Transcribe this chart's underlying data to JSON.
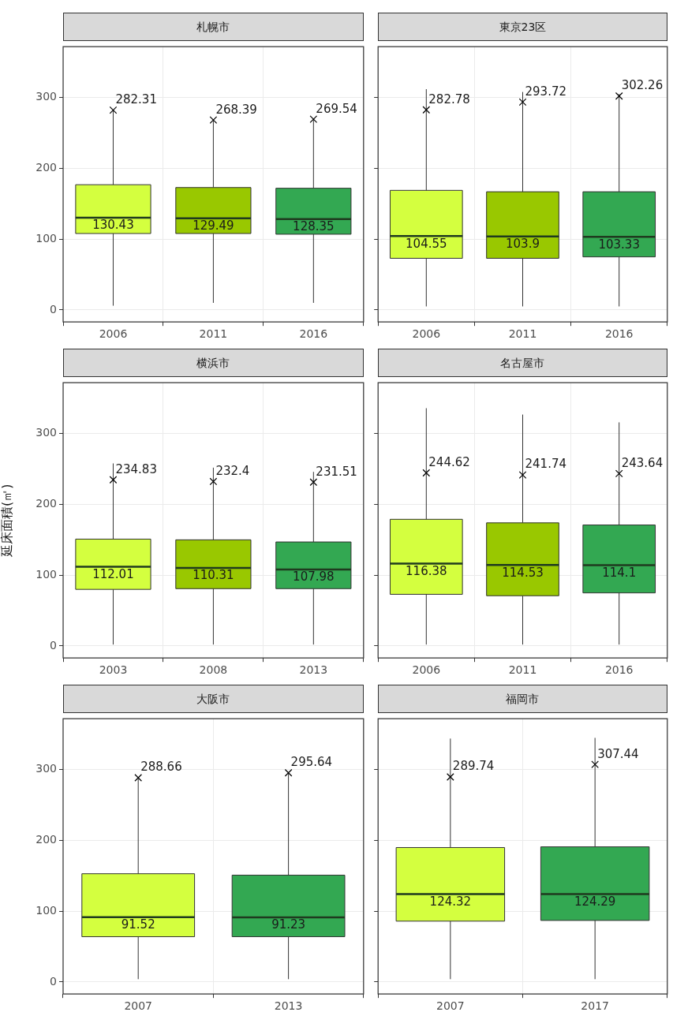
{
  "chart_data": [
    {
      "type": "box",
      "title": "札幌市",
      "categories": [
        "2006",
        "2011",
        "2016"
      ],
      "colors": [
        "#d4ff3f",
        "#99c800",
        "#33a852"
      ],
      "boxes": [
        {
          "low": 6,
          "q1": 108,
          "median": 130.43,
          "q3": 177,
          "high": 282
        },
        {
          "low": 10,
          "q1": 108,
          "median": 129.49,
          "q3": 173,
          "high": 268
        },
        {
          "low": 10,
          "q1": 107,
          "median": 128.35,
          "q3": 172,
          "high": 270
        }
      ],
      "series": [
        {
          "type": "scatter",
          "color": "#000000",
          "marker": "cross",
          "values": [
            282.31,
            268.39,
            269.54
          ]
        }
      ],
      "annotations": [
        {
          "text": "130.43",
          "x": "2006",
          "y": 130.43
        },
        {
          "text": "129.49",
          "x": "2011",
          "y": 129.49
        },
        {
          "text": "128.35",
          "x": "2016",
          "y": 128.35
        }
      ],
      "ylim": [
        -17,
        372
      ],
      "yticks": [
        0,
        100,
        200,
        300
      ],
      "grid": true,
      "data_labels": true
    },
    {
      "type": "box",
      "title": "東京23区",
      "categories": [
        "2006",
        "2011",
        "2016"
      ],
      "colors": [
        "#d4ff3f",
        "#99c800",
        "#33a852"
      ],
      "boxes": [
        {
          "low": 5,
          "q1": 73,
          "median": 104.55,
          "q3": 169,
          "high": 312
        },
        {
          "low": 5,
          "q1": 73,
          "median": 103.9,
          "q3": 167,
          "high": 308
        },
        {
          "low": 5,
          "q1": 75,
          "median": 103.33,
          "q3": 167,
          "high": 305
        }
      ],
      "series": [
        {
          "type": "scatter",
          "color": "#000000",
          "marker": "cross",
          "values": [
            282.78,
            293.72,
            302.26
          ]
        }
      ],
      "annotations": [
        {
          "text": "104.55",
          "x": "2006",
          "y": 104.55
        },
        {
          "text": "103.9",
          "x": "2011",
          "y": 103.9
        },
        {
          "text": "103.33",
          "x": "2016",
          "y": 103.33
        }
      ],
      "ylim": [
        -17,
        372
      ],
      "yticks": [
        0,
        100,
        200,
        300
      ],
      "grid": true,
      "data_labels": true,
      "tick_labels": "x"
    },
    {
      "type": "box",
      "title": "横浜市",
      "ylabel": "延床面積(㎡)",
      "categories": [
        "2003",
        "2008",
        "2013"
      ],
      "colors": [
        "#d4ff3f",
        "#99c800",
        "#33a852"
      ],
      "boxes": [
        {
          "low": 2,
          "q1": 80,
          "median": 112.01,
          "q3": 151,
          "high": 258
        },
        {
          "low": 2,
          "q1": 81,
          "median": 110.31,
          "q3": 150,
          "high": 252
        },
        {
          "low": 2,
          "q1": 81,
          "median": 107.98,
          "q3": 147,
          "high": 246
        }
      ],
      "series": [
        {
          "type": "scatter",
          "color": "#000000",
          "marker": "cross",
          "values": [
            234.83,
            232.4,
            231.51
          ]
        }
      ],
      "annotations": [
        {
          "text": "112.01",
          "x": "2003",
          "y": 112.01
        },
        {
          "text": "110.31",
          "x": "2008",
          "y": 110.31
        },
        {
          "text": "107.98",
          "x": "2013",
          "y": 107.98
        }
      ],
      "ylim": [
        -17,
        372
      ],
      "yticks": [
        0,
        100,
        200,
        300
      ],
      "grid": true,
      "data_labels": true
    },
    {
      "type": "box",
      "title": "名古屋市",
      "categories": [
        "2006",
        "2011",
        "2016"
      ],
      "colors": [
        "#d4ff3f",
        "#99c800",
        "#33a852"
      ],
      "boxes": [
        {
          "low": 2,
          "q1": 73,
          "median": 116.38,
          "q3": 179,
          "high": 336
        },
        {
          "low": 2,
          "q1": 71,
          "median": 114.53,
          "q3": 174,
          "high": 327
        },
        {
          "low": 2,
          "q1": 75,
          "median": 114.1,
          "q3": 171,
          "high": 316
        }
      ],
      "series": [
        {
          "type": "scatter",
          "color": "#000000",
          "marker": "cross",
          "values": [
            244.62,
            241.74,
            243.64
          ]
        }
      ],
      "annotations": [
        {
          "text": "116.38",
          "x": "2006",
          "y": 116.38
        },
        {
          "text": "114.53",
          "x": "2011",
          "y": 114.53
        },
        {
          "text": "114.1",
          "x": "2016",
          "y": 114.1
        }
      ],
      "ylim": [
        -17,
        372
      ],
      "yticks": [
        0,
        100,
        200,
        300
      ],
      "grid": true,
      "data_labels": true,
      "tick_labels": "x"
    },
    {
      "type": "box",
      "title": "大阪市",
      "categories": [
        "2007",
        "2013"
      ],
      "colors": [
        "#d4ff3f",
        "#33a852"
      ],
      "boxes": [
        {
          "low": 4,
          "q1": 64,
          "median": 91.52,
          "q3": 153,
          "high": 288
        },
        {
          "low": 4,
          "q1": 64,
          "median": 91.23,
          "q3": 151,
          "high": 295
        }
      ],
      "series": [
        {
          "type": "scatter",
          "color": "#000000",
          "marker": "cross",
          "values": [
            288.66,
            295.64
          ]
        }
      ],
      "annotations": [
        {
          "text": "91.52",
          "x": "2007",
          "y": 91.52
        },
        {
          "text": "91.23",
          "x": "2013",
          "y": 91.23
        }
      ],
      "ylim": [
        -17,
        372
      ],
      "yticks": [
        0,
        100,
        200,
        300
      ],
      "grid": true,
      "data_labels": true
    },
    {
      "type": "box",
      "title": "福岡市",
      "categories": [
        "2007",
        "2017"
      ],
      "colors": [
        "#d4ff3f",
        "#33a852"
      ],
      "boxes": [
        {
          "low": 4,
          "q1": 86,
          "median": 124.32,
          "q3": 190,
          "high": 344
        },
        {
          "low": 4,
          "q1": 87,
          "median": 124.29,
          "q3": 191,
          "high": 345
        }
      ],
      "series": [
        {
          "type": "scatter",
          "color": "#000000",
          "marker": "cross",
          "values": [
            289.74,
            307.44
          ]
        }
      ],
      "annotations": [
        {
          "text": "124.32",
          "x": "2007",
          "y": 124.32
        },
        {
          "text": "124.29",
          "x": "2017",
          "y": 124.29
        }
      ],
      "ylim": [
        -17,
        372
      ],
      "yticks": [
        0,
        100,
        200,
        300
      ],
      "grid": true,
      "data_labels": true,
      "tick_labels": "x"
    }
  ]
}
